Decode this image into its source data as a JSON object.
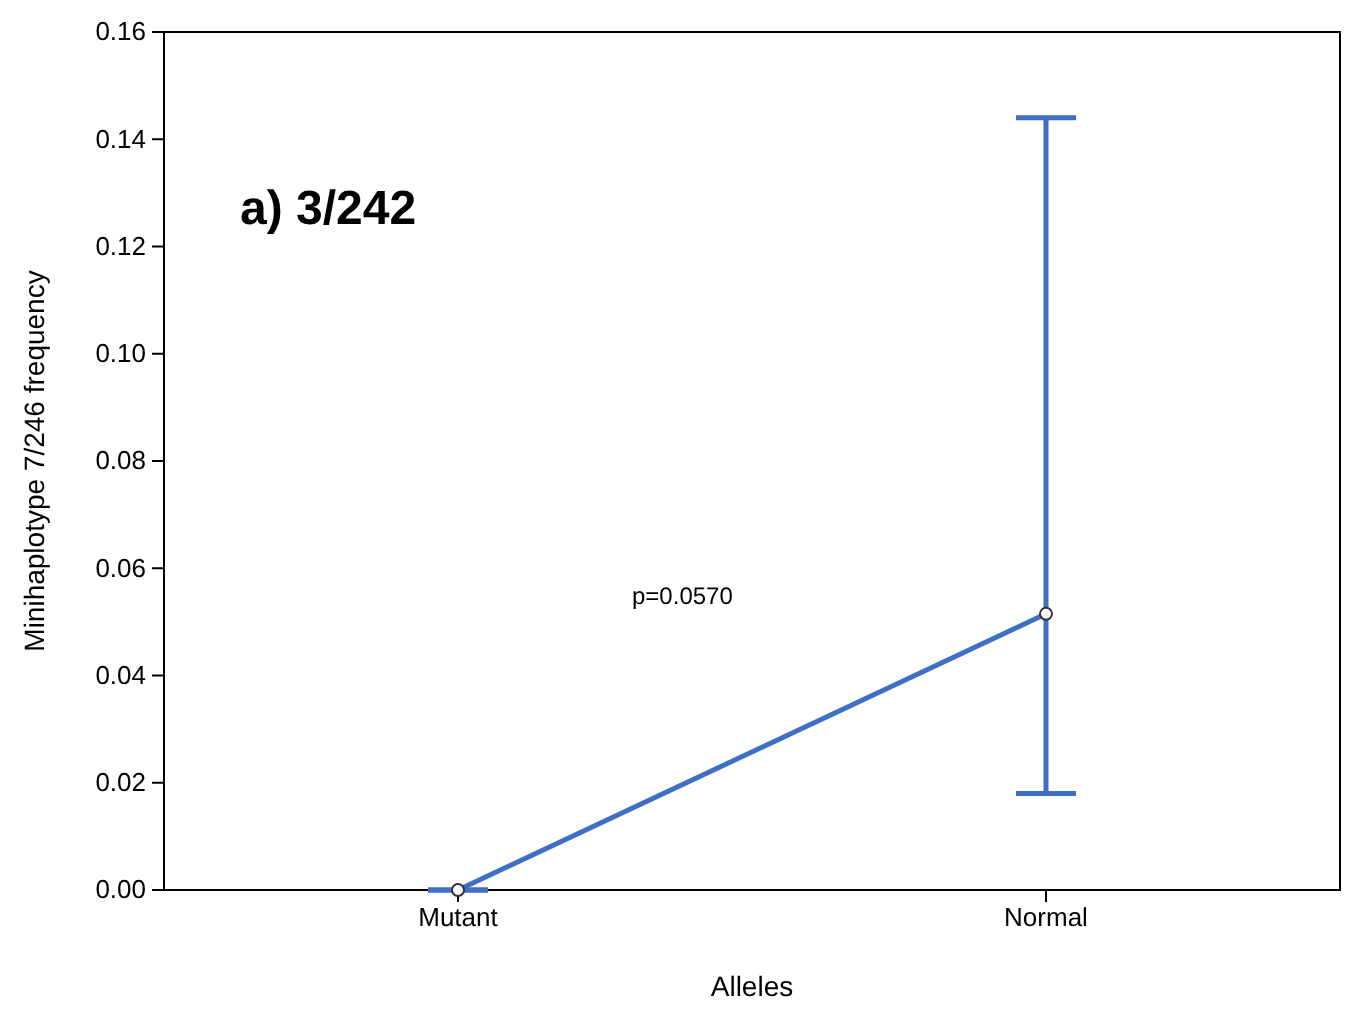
{
  "chart_data": {
    "type": "line",
    "xlabel": "Alleles",
    "ylabel": "Minihaplotype 7/246 frequency",
    "categories": [
      "Mutant",
      "Normal"
    ],
    "series": [
      {
        "color": "#3f6fc4",
        "values": [
          0.0,
          0.0515
        ],
        "errors": [
          [
            0.0,
            0.0
          ],
          [
            0.018,
            0.144
          ]
        ]
      }
    ],
    "ylim": [
      0,
      0.16
    ],
    "yticks": [
      {
        "value": 0,
        "label": "0.00"
      },
      {
        "value": 0.02,
        "label": "0.02"
      },
      {
        "value": 0.04,
        "label": "0.04"
      },
      {
        "value": 0.06,
        "label": "0.06"
      },
      {
        "value": 0.08,
        "label": "0.08"
      },
      {
        "value": 0.1,
        "label": "0.10"
      },
      {
        "value": 0.12,
        "label": "0.12"
      },
      {
        "value": 0.14,
        "label": "0.14"
      },
      {
        "value": 0.16,
        "label": "0.16"
      }
    ],
    "marker": "circle",
    "line_style": "solid",
    "grid": false,
    "annotations": [
      "a) 3/242",
      "p=0.0570"
    ]
  }
}
